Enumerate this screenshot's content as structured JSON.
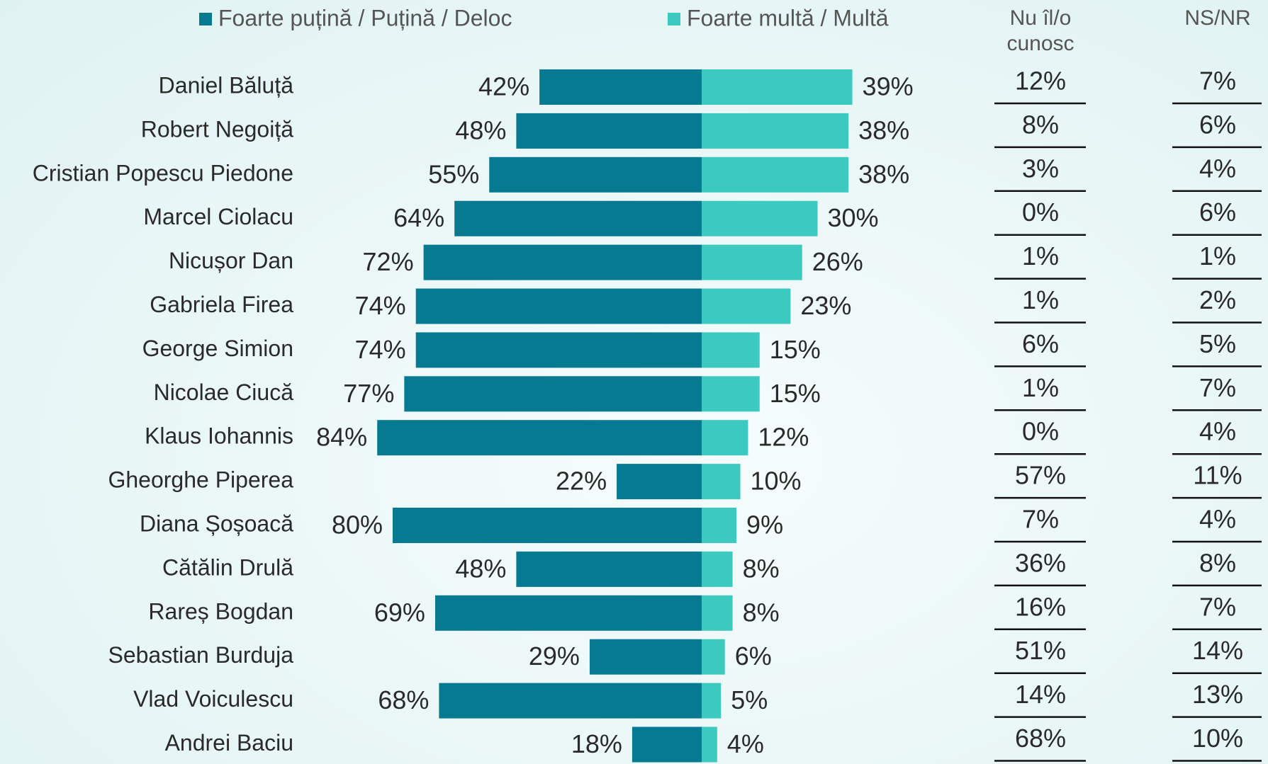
{
  "chart_data": {
    "type": "diverging-bar",
    "categories": [
      "Daniel Băluță",
      "Robert Negoiță",
      "Cristian Popescu Piedone",
      "Marcel Ciolacu",
      "Nicușor Dan",
      "Gabriela Firea",
      "George Simion",
      "Nicolae Ciucă",
      "Klaus Iohannis",
      "Gheorghe Piperea",
      "Diana Șoșoacă",
      "Cătălin Drulă",
      "Rareș Bogdan",
      "Sebastian Burduja",
      "Vlad Voiculescu",
      "Andrei Baciu"
    ],
    "series": [
      {
        "name": "Foarte puțină / Puțină / Deloc",
        "color": "#067a90",
        "values": [
          42,
          48,
          55,
          64,
          72,
          74,
          74,
          77,
          84,
          22,
          80,
          48,
          69,
          29,
          68,
          18
        ],
        "value_labels": [
          "42%",
          "48%",
          "55%",
          "64%",
          "72%",
          "74%",
          "74%",
          "77%",
          "84%",
          "22%",
          "80%",
          "48%",
          "69%",
          "29%",
          "68%",
          "18%"
        ]
      },
      {
        "name": "Foarte multă / Multă",
        "color": "#3cc9bf",
        "values": [
          39,
          38,
          38,
          30,
          26,
          23,
          15,
          15,
          12,
          10,
          9,
          8,
          8,
          6,
          5,
          4
        ],
        "value_labels": [
          "39%",
          "38%",
          "38%",
          "30%",
          "26%",
          "23%",
          "15%",
          "15%",
          "12%",
          "10%",
          "9%",
          "8%",
          "8%",
          "6%",
          "5%",
          "4%"
        ]
      },
      {
        "name": "Nu îl/o cunosc",
        "values": [
          12,
          8,
          3,
          0,
          1,
          1,
          6,
          1,
          0,
          57,
          7,
          36,
          16,
          51,
          14,
          68
        ],
        "value_labels": [
          "12%",
          "8%",
          "3%",
          "0%",
          "1%",
          "1%",
          "6%",
          "1%",
          "0%",
          "57%",
          "7%",
          "36%",
          "16%",
          "51%",
          "14%",
          "68%"
        ]
      },
      {
        "name": "NS/NR",
        "values": [
          7,
          6,
          4,
          6,
          1,
          2,
          5,
          7,
          4,
          11,
          4,
          8,
          7,
          14,
          13,
          10
        ],
        "value_labels": [
          "7%",
          "6%",
          "4%",
          "6%",
          "1%",
          "2%",
          "5%",
          "7%",
          "4%",
          "11%",
          "4%",
          "8%",
          "7%",
          "14%",
          "13%",
          "10%"
        ]
      }
    ]
  }
}
